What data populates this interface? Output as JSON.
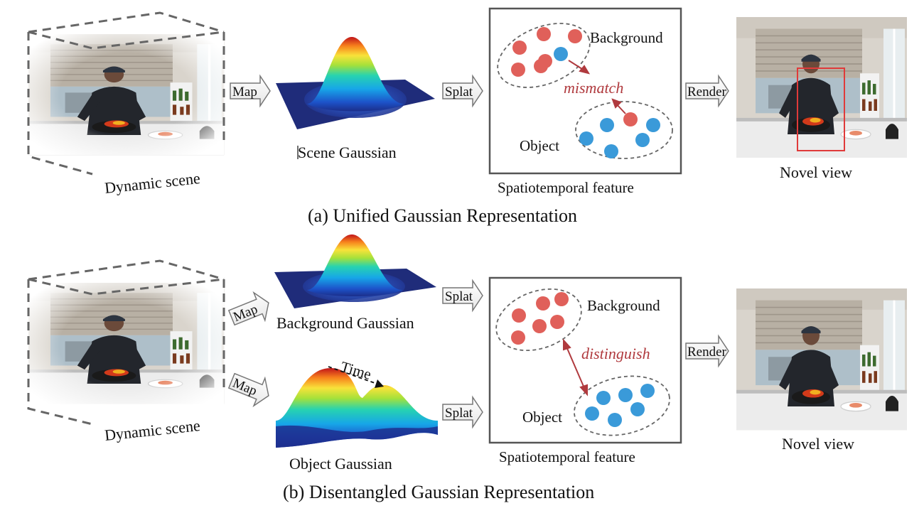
{
  "panel_a": {
    "caption": "(a) Unified Gaussian Representation",
    "scene_label": "Dynamic scene",
    "map_label": "Map",
    "gaussian_label": "Scene Gaussian",
    "splat_label": "Splat",
    "background_label": "Background",
    "object_label": "Object",
    "relation_label": "mismatch",
    "feature_label": "Spatiotemporal feature",
    "render_label": "Render",
    "novel_label": "Novel view"
  },
  "panel_b": {
    "caption": "(b) Disentangled Gaussian Representation",
    "scene_label": "Dynamic scene",
    "map_label_top": "Map",
    "map_label_bottom": "Map",
    "background_gaussian_label": "Background Gaussian",
    "object_gaussian_label": "Object Gaussian",
    "time_label": "Time",
    "splat_label_top": "Splat",
    "splat_label_bottom": "Splat",
    "background_label": "Background",
    "object_label": "Object",
    "relation_label": "distinguish",
    "feature_label": "Spatiotemporal feature",
    "render_label": "Render",
    "novel_label": "Novel view"
  },
  "colors": {
    "background_point": "#e0605a",
    "object_point": "#3a9ad9",
    "relation": "#b03a3e",
    "highlight_box": "#e03a3a"
  }
}
